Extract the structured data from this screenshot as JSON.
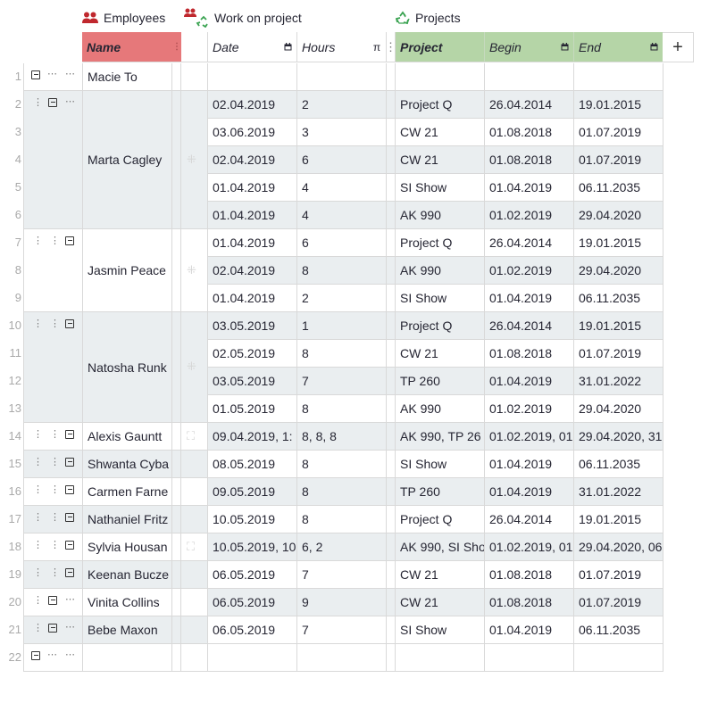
{
  "sections": {
    "employees": "Employees",
    "work": "Work on project",
    "projects": "Projects"
  },
  "columns": {
    "name": "Name",
    "date": "Date",
    "hours": "Hours",
    "hours_icon": "π",
    "project": "Project",
    "begin": "Begin",
    "end": "End",
    "add": "+"
  },
  "colors": {
    "name_header": "#e6787a",
    "project_header": "#b5d5a7",
    "zebra": "#eaeef0",
    "employee_icon": "#c0282e",
    "recycle_icon": "#3aa351"
  },
  "row_numbers": [
    "1",
    "2",
    "3",
    "4",
    "5",
    "6",
    "7",
    "8",
    "9",
    "10",
    "11",
    "12",
    "13",
    "14",
    "15",
    "16",
    "17",
    "18",
    "19",
    "20",
    "21",
    "22"
  ],
  "employees": [
    {
      "name": "Macie To",
      "rows": [
        1
      ]
    },
    {
      "name": "Marta Cagley",
      "rows": [
        2,
        3,
        4,
        5,
        6
      ]
    },
    {
      "name": "Jasmin Peace",
      "rows": [
        7,
        8,
        9
      ]
    },
    {
      "name": "Natosha Runk",
      "rows": [
        10,
        11,
        12,
        13
      ]
    },
    {
      "name": "Alexis Gauntt",
      "rows": [
        14
      ]
    },
    {
      "name": "Shwanta Cyba",
      "rows": [
        15
      ]
    },
    {
      "name": "Carmen Farne",
      "rows": [
        16
      ]
    },
    {
      "name": "Nathaniel Fritz",
      "rows": [
        17
      ]
    },
    {
      "name": "Sylvia Housan",
      "rows": [
        18
      ]
    },
    {
      "name": "Keenan Bucze",
      "rows": [
        19
      ]
    },
    {
      "name": "Vinita Collins",
      "rows": [
        20
      ]
    },
    {
      "name": "Bebe Maxon",
      "rows": [
        21
      ]
    },
    {
      "name": "",
      "rows": [
        22
      ]
    }
  ],
  "rows": [
    {
      "date": "",
      "hours": "",
      "project": "",
      "begin": "",
      "end": ""
    },
    {
      "date": "02.04.2019",
      "hours": "2",
      "project": "Project Q",
      "begin": "26.04.2014",
      "end": "19.01.2015"
    },
    {
      "date": "03.06.2019",
      "hours": "3",
      "project": "CW 21",
      "begin": "01.08.2018",
      "end": "01.07.2019"
    },
    {
      "date": "02.04.2019",
      "hours": "6",
      "project": "CW 21",
      "begin": "01.08.2018",
      "end": "01.07.2019"
    },
    {
      "date": "01.04.2019",
      "hours": "4",
      "project": "SI Show",
      "begin": "01.04.2019",
      "end": "06.11.2035"
    },
    {
      "date": "01.04.2019",
      "hours": "4",
      "project": "AK 990",
      "begin": "01.02.2019",
      "end": "29.04.2020"
    },
    {
      "date": "01.04.2019",
      "hours": "6",
      "project": "Project Q",
      "begin": "26.04.2014",
      "end": "19.01.2015"
    },
    {
      "date": "02.04.2019",
      "hours": "8",
      "project": "AK 990",
      "begin": "01.02.2019",
      "end": "29.04.2020"
    },
    {
      "date": "01.04.2019",
      "hours": "2",
      "project": "SI Show",
      "begin": "01.04.2019",
      "end": "06.11.2035"
    },
    {
      "date": "03.05.2019",
      "hours": "1",
      "project": "Project Q",
      "begin": "26.04.2014",
      "end": "19.01.2015"
    },
    {
      "date": "02.05.2019",
      "hours": "8",
      "project": "CW 21",
      "begin": "01.08.2018",
      "end": "01.07.2019"
    },
    {
      "date": "03.05.2019",
      "hours": "7",
      "project": "TP 260",
      "begin": "01.04.2019",
      "end": "31.01.2022"
    },
    {
      "date": "01.05.2019",
      "hours": "8",
      "project": "AK 990",
      "begin": "01.02.2019",
      "end": "29.04.2020"
    },
    {
      "date": "09.04.2019, 1:",
      "hours": "8, 8, 8",
      "project": "AK 990, TP 26",
      "begin": "01.02.2019, 01",
      "end": "29.04.2020, 31"
    },
    {
      "date": "08.05.2019",
      "hours": "8",
      "project": "SI Show",
      "begin": "01.04.2019",
      "end": "06.11.2035"
    },
    {
      "date": "09.05.2019",
      "hours": "8",
      "project": "TP 260",
      "begin": "01.04.2019",
      "end": "31.01.2022"
    },
    {
      "date": "10.05.2019",
      "hours": "8",
      "project": "Project Q",
      "begin": "26.04.2014",
      "end": "19.01.2015"
    },
    {
      "date": "10.05.2019, 10",
      "hours": "6, 2",
      "project": "AK 990, SI Sho",
      "begin": "01.02.2019, 01",
      "end": "29.04.2020, 06"
    },
    {
      "date": "06.05.2019",
      "hours": "7",
      "project": "CW 21",
      "begin": "01.08.2018",
      "end": "01.07.2019"
    },
    {
      "date": "06.05.2019",
      "hours": "9",
      "project": "CW 21",
      "begin": "01.08.2018",
      "end": "01.07.2019"
    },
    {
      "date": "06.05.2019",
      "hours": "7",
      "project": "SI Show",
      "begin": "01.04.2019",
      "end": "06.11.2035"
    },
    {
      "date": "",
      "hours": "",
      "project": "",
      "begin": "",
      "end": ""
    }
  ]
}
